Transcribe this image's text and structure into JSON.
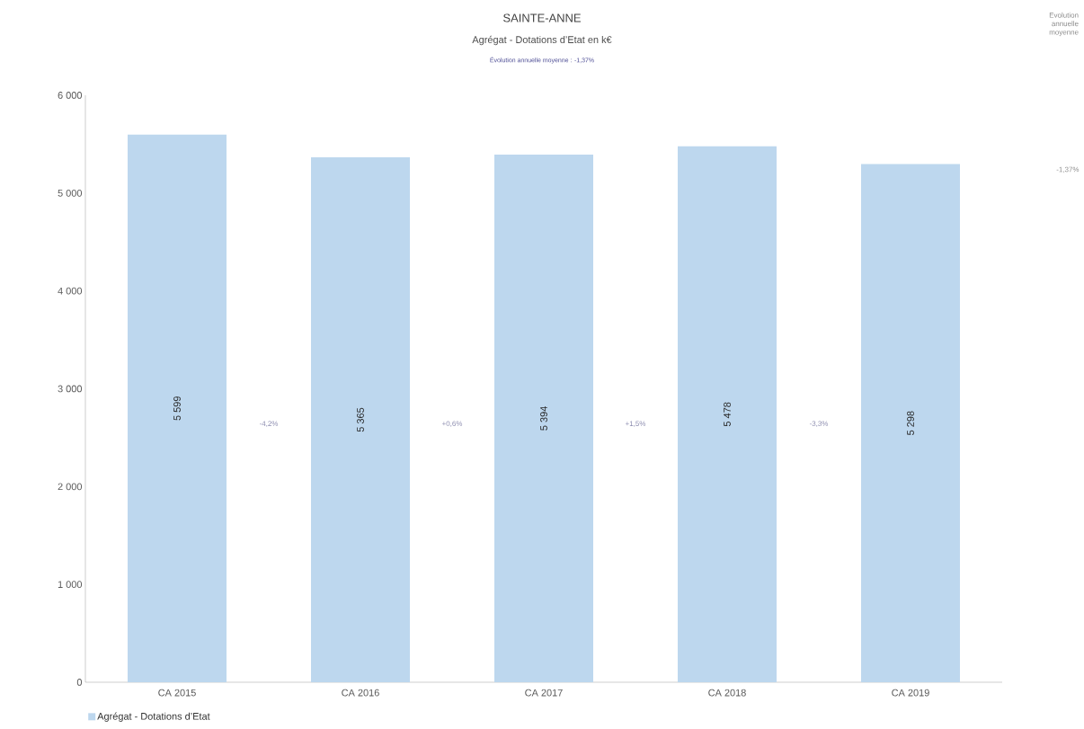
{
  "chart_data": {
    "type": "bar",
    "title": "SAINTE-ANNE",
    "subtitle": "Agrégat - Dotations d’Etat en k€",
    "categories": [
      "CA 2015",
      "CA 2016",
      "CA 2017",
      "CA 2018",
      "CA 2019"
    ],
    "series": [
      {
        "name": "Agrégat - Dotations d’Etat",
        "color": "#bdd7ee",
        "values": [
          5599,
          5365,
          5394,
          5478,
          5298
        ],
        "value_labels": [
          "5 599",
          "5 365",
          "5 394",
          "5 478",
          "5 298"
        ]
      }
    ],
    "ylim": [
      0,
      6000
    ],
    "yticks": [
      {
        "value": 0,
        "label": "0"
      },
      {
        "value": 1000,
        "label": "1 000"
      },
      {
        "value": 2000,
        "label": "2 000"
      },
      {
        "value": 3000,
        "label": "3 000"
      },
      {
        "value": 4000,
        "label": "4 000"
      },
      {
        "value": 5000,
        "label": "5 000"
      },
      {
        "value": 6000,
        "label": "6 000"
      }
    ],
    "annotations": [
      "Évolution annuelle moyenne : -1,37%",
      "Evolution annuelle moyenne",
      "-1,37%",
      "-4,2%",
      "+0,6%",
      "+1,5%",
      "-3,3%"
    ],
    "legend": "bottom",
    "grid": false
  }
}
